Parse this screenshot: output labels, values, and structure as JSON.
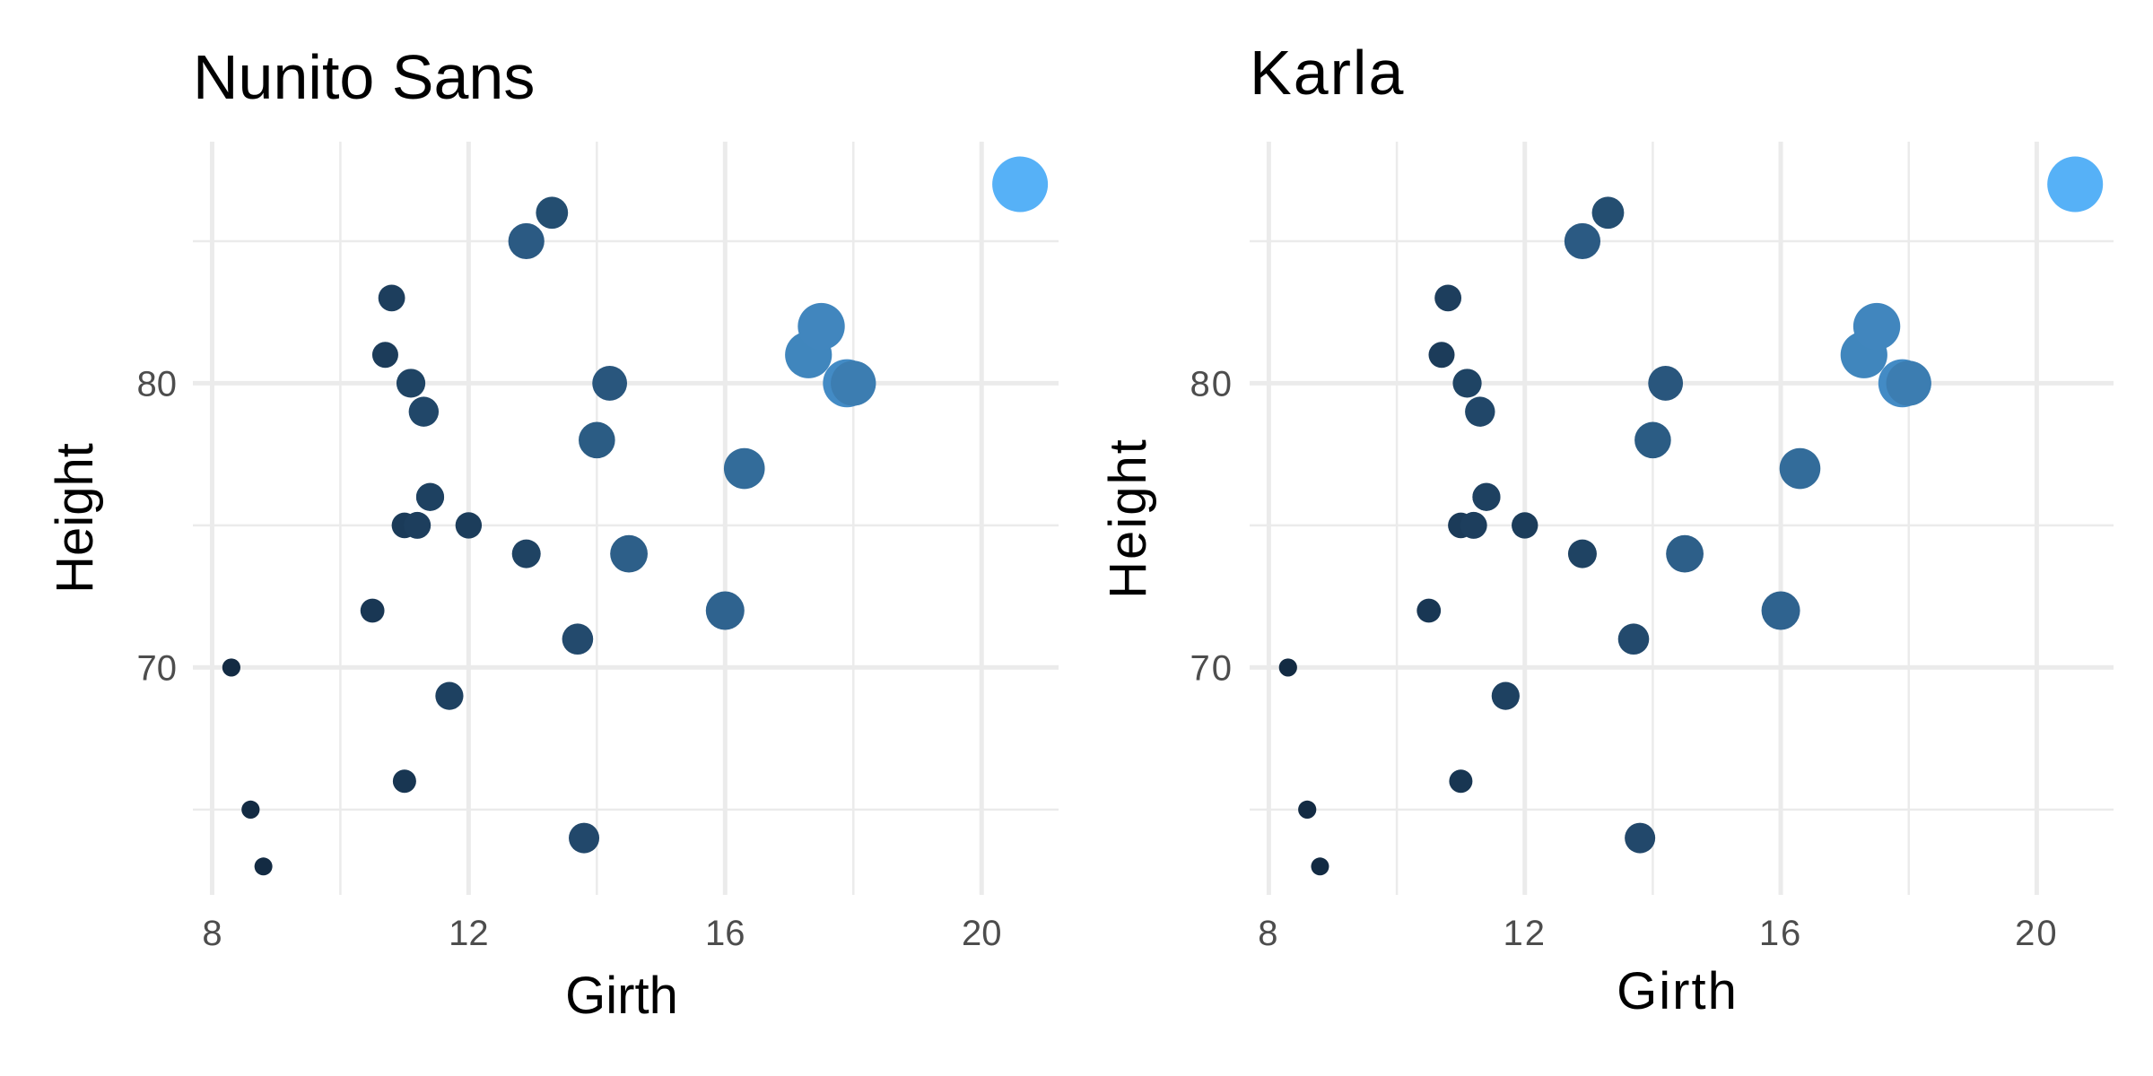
{
  "chart_data": [
    {
      "type": "scatter",
      "title": "Nunito Sans",
      "xlabel": "Girth",
      "ylabel": "Height",
      "xlim": [
        7.7,
        21.2
      ],
      "ylim": [
        62,
        88.5
      ],
      "x_ticks": [
        "8",
        "12",
        "16",
        "20"
      ],
      "y_ticks": [
        "70",
        "80"
      ],
      "x_tick_values": [
        8,
        12,
        16,
        20
      ],
      "y_tick_values": [
        70,
        80
      ],
      "x_minor_grid": [
        10,
        14,
        18
      ],
      "y_minor_grid": [
        65,
        75,
        85
      ],
      "grid": true,
      "size_and_color_encode": "Volume",
      "color_range": [
        "#132B43",
        "#56B1F7"
      ],
      "series": [
        {
          "points": [
            {
              "x": 8.3,
              "y": 70,
              "size": 10.3
            },
            {
              "x": 8.6,
              "y": 65,
              "size": 10.3
            },
            {
              "x": 8.8,
              "y": 63,
              "size": 10.2
            },
            {
              "x": 10.5,
              "y": 72,
              "size": 16.4
            },
            {
              "x": 10.7,
              "y": 81,
              "size": 18.8
            },
            {
              "x": 10.8,
              "y": 83,
              "size": 19.7
            },
            {
              "x": 11.0,
              "y": 66,
              "size": 15.6
            },
            {
              "x": 11.0,
              "y": 75,
              "size": 18.2
            },
            {
              "x": 11.1,
              "y": 80,
              "size": 22.6
            },
            {
              "x": 11.2,
              "y": 75,
              "size": 19.9
            },
            {
              "x": 11.3,
              "y": 79,
              "size": 24.2
            },
            {
              "x": 11.4,
              "y": 76,
              "size": 21.0
            },
            {
              "x": 11.4,
              "y": 76,
              "size": 21.4
            },
            {
              "x": 11.7,
              "y": 69,
              "size": 21.3
            },
            {
              "x": 12.0,
              "y": 75,
              "size": 19.1
            },
            {
              "x": 12.9,
              "y": 74,
              "size": 22.2
            },
            {
              "x": 12.9,
              "y": 85,
              "size": 33.8
            },
            {
              "x": 13.3,
              "y": 86,
              "size": 27.4
            },
            {
              "x": 13.7,
              "y": 71,
              "size": 25.7
            },
            {
              "x": 13.8,
              "y": 64,
              "size": 24.9
            },
            {
              "x": 14.0,
              "y": 78,
              "size": 34.5
            },
            {
              "x": 14.2,
              "y": 80,
              "size": 31.7
            },
            {
              "x": 14.5,
              "y": 74,
              "size": 36.3
            },
            {
              "x": 16.0,
              "y": 72,
              "size": 38.3
            },
            {
              "x": 16.3,
              "y": 77,
              "size": 42.6
            },
            {
              "x": 17.3,
              "y": 81,
              "size": 55.4
            },
            {
              "x": 17.5,
              "y": 82,
              "size": 55.7
            },
            {
              "x": 17.9,
              "y": 80,
              "size": 58.3
            },
            {
              "x": 18.0,
              "y": 80,
              "size": 51.5
            },
            {
              "x": 18.0,
              "y": 80,
              "size": 51.0
            },
            {
              "x": 20.6,
              "y": 87,
              "size": 77.0
            }
          ]
        }
      ]
    },
    {
      "type": "scatter",
      "title": "Karla",
      "xlabel": "Girth",
      "ylabel": "Height",
      "xlim": [
        7.7,
        21.2
      ],
      "ylim": [
        62,
        88.5
      ],
      "x_ticks": [
        "8",
        "12",
        "16",
        "20"
      ],
      "y_ticks": [
        "70",
        "80"
      ],
      "x_tick_values": [
        8,
        12,
        16,
        20
      ],
      "y_tick_values": [
        70,
        80
      ],
      "x_minor_grid": [
        10,
        14,
        18
      ],
      "y_minor_grid": [
        65,
        75,
        85
      ],
      "grid": true,
      "size_and_color_encode": "Volume",
      "color_range": [
        "#132B43",
        "#56B1F7"
      ],
      "series": [
        {
          "points": [
            {
              "x": 8.3,
              "y": 70,
              "size": 10.3
            },
            {
              "x": 8.6,
              "y": 65,
              "size": 10.3
            },
            {
              "x": 8.8,
              "y": 63,
              "size": 10.2
            },
            {
              "x": 10.5,
              "y": 72,
              "size": 16.4
            },
            {
              "x": 10.7,
              "y": 81,
              "size": 18.8
            },
            {
              "x": 10.8,
              "y": 83,
              "size": 19.7
            },
            {
              "x": 11.0,
              "y": 66,
              "size": 15.6
            },
            {
              "x": 11.0,
              "y": 75,
              "size": 18.2
            },
            {
              "x": 11.1,
              "y": 80,
              "size": 22.6
            },
            {
              "x": 11.2,
              "y": 75,
              "size": 19.9
            },
            {
              "x": 11.3,
              "y": 79,
              "size": 24.2
            },
            {
              "x": 11.4,
              "y": 76,
              "size": 21.0
            },
            {
              "x": 11.4,
              "y": 76,
              "size": 21.4
            },
            {
              "x": 11.7,
              "y": 69,
              "size": 21.3
            },
            {
              "x": 12.0,
              "y": 75,
              "size": 19.1
            },
            {
              "x": 12.9,
              "y": 74,
              "size": 22.2
            },
            {
              "x": 12.9,
              "y": 85,
              "size": 33.8
            },
            {
              "x": 13.3,
              "y": 86,
              "size": 27.4
            },
            {
              "x": 13.7,
              "y": 71,
              "size": 25.7
            },
            {
              "x": 13.8,
              "y": 64,
              "size": 24.9
            },
            {
              "x": 14.0,
              "y": 78,
              "size": 34.5
            },
            {
              "x": 14.2,
              "y": 80,
              "size": 31.7
            },
            {
              "x": 14.5,
              "y": 74,
              "size": 36.3
            },
            {
              "x": 16.0,
              "y": 72,
              "size": 38.3
            },
            {
              "x": 16.3,
              "y": 77,
              "size": 42.6
            },
            {
              "x": 17.3,
              "y": 81,
              "size": 55.4
            },
            {
              "x": 17.5,
              "y": 82,
              "size": 55.7
            },
            {
              "x": 17.9,
              "y": 80,
              "size": 58.3
            },
            {
              "x": 18.0,
              "y": 80,
              "size": 51.5
            },
            {
              "x": 18.0,
              "y": 80,
              "size": 51.0
            },
            {
              "x": 20.6,
              "y": 87,
              "size": 77.0
            }
          ]
        }
      ]
    }
  ]
}
